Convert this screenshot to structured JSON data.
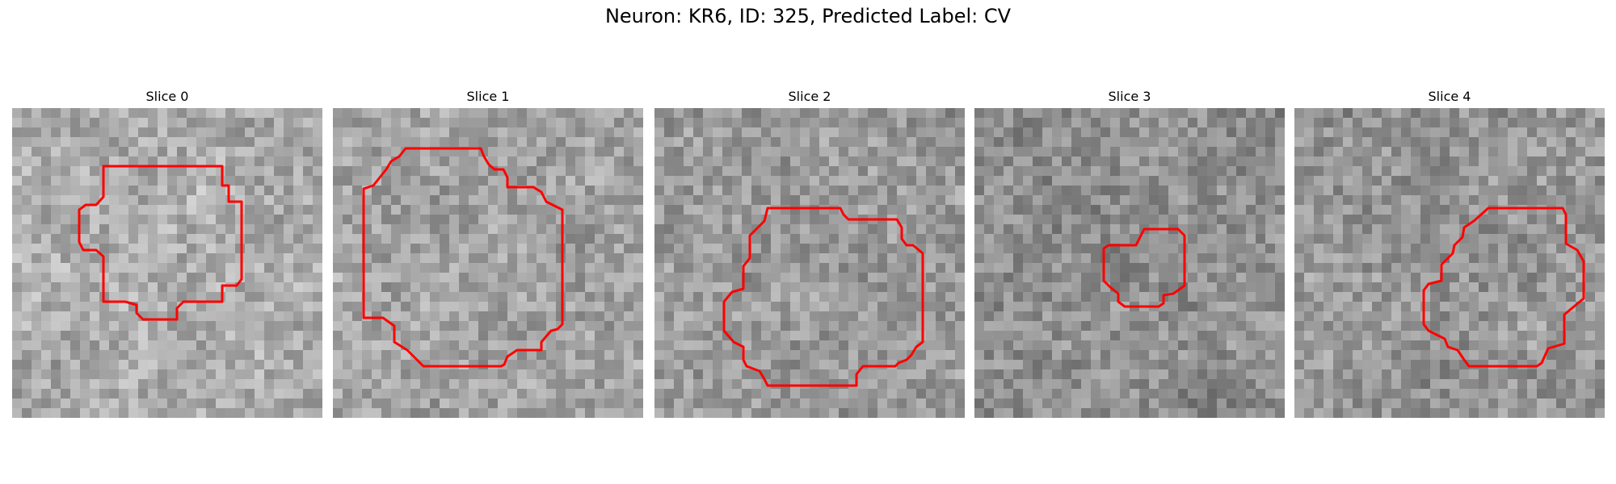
{
  "title": "Neuron: KR6, ID: 325, Predicted Label: CV",
  "outline_color": "#ff0000",
  "panels": [
    {
      "label": "Slice 0",
      "seed": 11,
      "bias": 0.72
    },
    {
      "label": "Slice 1",
      "seed": 23,
      "bias": 0.66
    },
    {
      "label": "Slice 2",
      "seed": 37,
      "bias": 0.6
    },
    {
      "label": "Slice 3",
      "seed": 51,
      "bias": 0.52
    },
    {
      "label": "Slice 4",
      "seed": 67,
      "bias": 0.58
    }
  ]
}
